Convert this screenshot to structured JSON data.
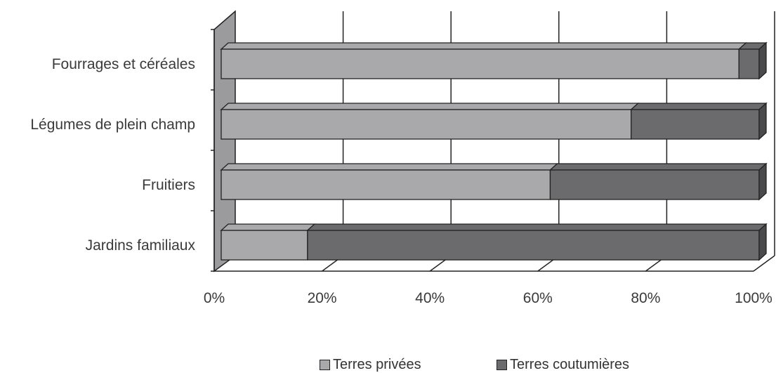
{
  "chart_data": {
    "type": "bar",
    "orientation": "horizontal",
    "stacked": "100%",
    "style": "3d",
    "categories": [
      "Fourrages et céréales",
      "Légumes de plein champ",
      "Fruitiers",
      "Jardins familiaux"
    ],
    "series": [
      {
        "name": "Terres privées",
        "values": [
          96,
          76,
          61,
          16
        ],
        "color": "#a9a9ab"
      },
      {
        "name": "Terres coutumières",
        "values": [
          4,
          24,
          39,
          84
        ],
        "color": "#6b6b6d"
      }
    ],
    "xticks": [
      "0%",
      "20%",
      "40%",
      "60%",
      "80%",
      "100%"
    ],
    "xlim": [
      0,
      100
    ],
    "grid": "vertical",
    "legend": "bottom"
  }
}
